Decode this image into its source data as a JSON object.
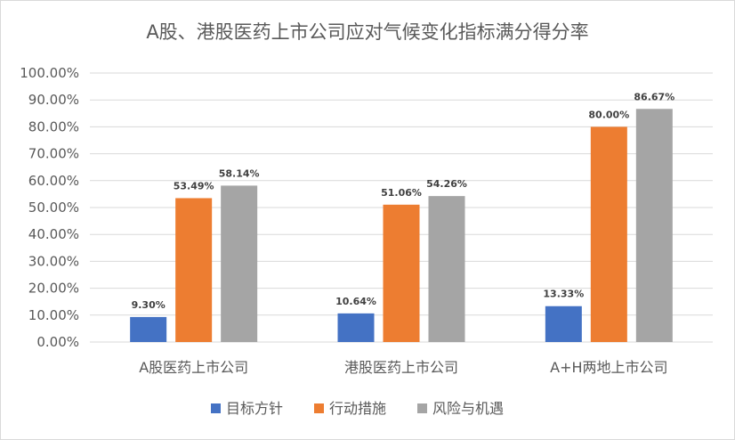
{
  "chart_data": {
    "type": "bar",
    "title": "A股、港股医药上市公司应对气候变化指标满分得分率",
    "categories": [
      "A股医药上市公司",
      "港股医药上市公司",
      "A+H两地上市公司"
    ],
    "series": [
      {
        "name": "目标方针",
        "color": "#4472c4",
        "values": [
          9.3,
          10.64,
          13.33
        ],
        "labels": [
          "9.30%",
          "10.64%",
          "13.33%"
        ]
      },
      {
        "name": "行动措施",
        "color": "#ed7d31",
        "values": [
          53.49,
          51.06,
          80.0
        ],
        "labels": [
          "53.49%",
          "51.06%",
          "80.00%"
        ]
      },
      {
        "name": "风险与机遇",
        "color": "#a5a5a5",
        "values": [
          58.14,
          54.26,
          86.67
        ],
        "labels": [
          "58.14%",
          "54.26%",
          "86.67%"
        ]
      }
    ],
    "ylim": [
      0,
      100
    ],
    "yticks": [
      "0.00%",
      "10.00%",
      "20.00%",
      "30.00%",
      "40.00%",
      "50.00%",
      "60.00%",
      "70.00%",
      "80.00%",
      "90.00%",
      "100.00%"
    ],
    "grid": true,
    "legend": "bottom"
  }
}
